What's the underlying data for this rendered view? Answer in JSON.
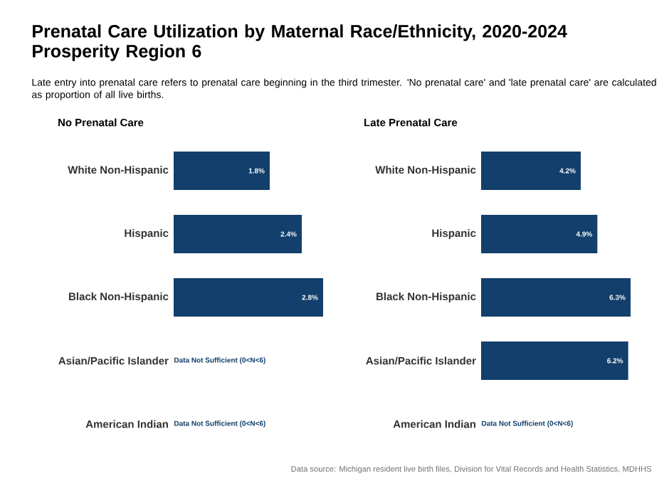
{
  "chart_data": [
    {
      "type": "bar",
      "orientation": "horizontal",
      "title": "No Prenatal Care",
      "categories": [
        "White Non-Hispanic",
        "Hispanic",
        "Black Non-Hispanic",
        "Asian/Pacific Islander",
        "American Indian"
      ],
      "values": [
        1.8,
        2.4,
        2.8,
        null,
        null
      ],
      "color": "#123f6b",
      "value_labels": [
        "1.8%",
        "2.4%",
        "2.8%",
        null,
        null
      ],
      "annotations": [
        "Data Not Sufficient (0<N<6)",
        "Data Not Sufficient (0<N<6)"
      ]
    },
    {
      "type": "bar",
      "orientation": "horizontal",
      "title": "Late Prenatal Care",
      "categories": [
        "White Non-Hispanic",
        "Hispanic",
        "Black Non-Hispanic",
        "Asian/Pacific Islander",
        "American Indian"
      ],
      "values": [
        4.2,
        4.9,
        6.3,
        6.2,
        null
      ],
      "color": "#123f6b",
      "value_labels": [
        "4.2%",
        "4.9%",
        "6.3%",
        "6.2%",
        null
      ],
      "annotations": [
        "Data Not Sufficient (0<N<6)"
      ]
    },
    {
      "type": "other",
      "title": "Prenatal Care Utilization by Maternal Race/Ethnicity, 2020-2024 Prosperity Region 6",
      "subtitle": "Late entry into prenatal care refers to prenatal care beginning in the third trimester. 'No prenatal care' and 'late prenatal care' are calculated as proportion of all live births.",
      "annotations": [
        "Data source: Michigan resident live birth files, Division for Vital Records and Health Statistics, MDHHS"
      ]
    }
  ]
}
